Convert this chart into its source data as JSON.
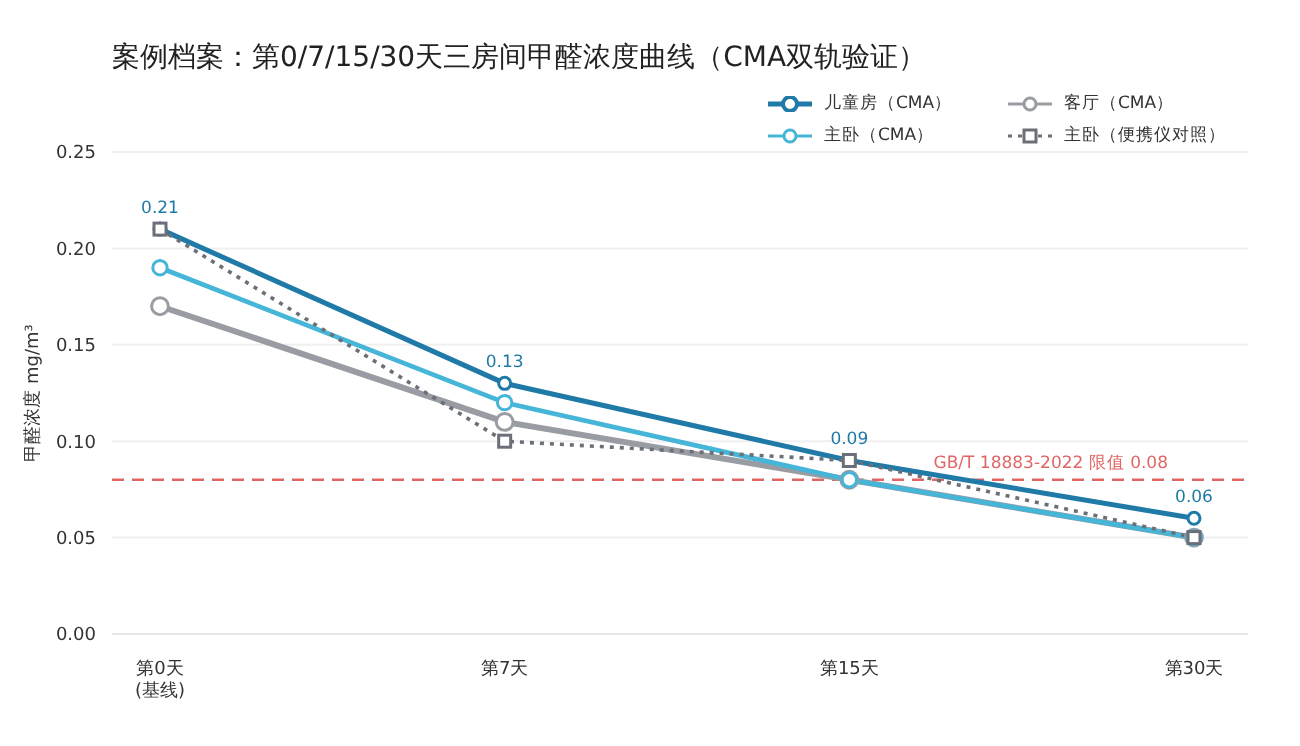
{
  "chart_data": {
    "type": "line",
    "title": "案例档案：第0/7/15/30天三房间甲醛浓度曲线（CMA双轨验证）",
    "ylabel": "甲醛浓度 mg/m³",
    "categories": [
      "第0天\n(基线)",
      "第7天",
      "第15天",
      "第30天"
    ],
    "ylim": [
      0,
      0.25
    ],
    "yticks": [
      {
        "value": 0,
        "label": "0.00"
      },
      {
        "value": 0.05,
        "label": "0.05"
      },
      {
        "value": 0.1,
        "label": "0.10"
      },
      {
        "value": 0.15,
        "label": "0.15"
      },
      {
        "value": 0.2,
        "label": "0.20"
      },
      {
        "value": 0.25,
        "label": "0.25"
      }
    ],
    "series": [
      {
        "name": "儿童房（CMA）",
        "color": "#1f7aa8",
        "values": [
          0.21,
          0.13,
          0.09,
          0.06
        ],
        "marker": "circle",
        "line_style": "solid",
        "value_labels": [
          "0.21",
          "0.13",
          "0.09",
          "0.06"
        ]
      },
      {
        "name": "客厅（CMA）",
        "color": "#9a9ca3",
        "values": [
          0.17,
          0.11,
          0.08,
          0.05
        ],
        "marker": "circle",
        "line_style": "solid"
      },
      {
        "name": "主卧（CMA）",
        "color": "#45b5d8",
        "values": [
          0.19,
          0.12,
          0.08,
          0.05
        ],
        "marker": "circle",
        "line_style": "solid"
      },
      {
        "name": "主卧（便携仪对照）",
        "color": "#6b6f78",
        "values": [
          0.21,
          0.1,
          0.09,
          0.05
        ],
        "marker": "square",
        "line_style": "dotted"
      }
    ],
    "ref_lines": [
      {
        "axis": "y",
        "value": 0.08,
        "label": "GB/T 18883-2022 限值 0.08",
        "color": "#e06666",
        "line_style": "dashed"
      }
    ],
    "grid": "y",
    "legend": "top right"
  }
}
